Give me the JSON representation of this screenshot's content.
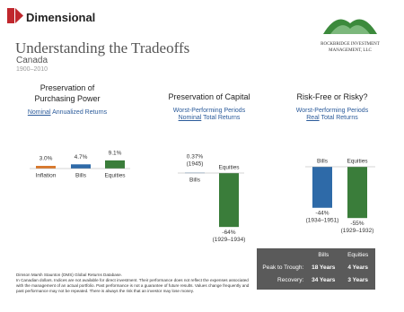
{
  "header": {
    "brand": "Dimensional",
    "title": "Understanding the Tradeoffs",
    "subtitle": "Canada",
    "period": "1900–2010",
    "partner": [
      "ROCKBRIDGE INVESTMENT",
      "MANAGEMENT, LLC"
    ]
  },
  "chart_data": [
    {
      "type": "bar",
      "title": "Preservation of Purchasing Power",
      "measure_underlined": "Nominal",
      "measure_rest": "Annualized Returns",
      "categories": [
        "Inflation",
        "Bills",
        "Equities"
      ],
      "values": [
        3.0,
        4.7,
        9.1
      ],
      "value_labels": [
        "3.0%",
        "4.7%",
        "9.1%"
      ],
      "colors": [
        "#d9782b",
        "#2e6aa8",
        "#3a7d3a"
      ]
    },
    {
      "type": "bar",
      "title": "Preservation of Capital",
      "subtitle": "Worst-Performing Periods",
      "measure_underlined": "Nominal",
      "measure_rest": "Total Returns",
      "categories": [
        "Bills",
        "Equities"
      ],
      "values": [
        0.37,
        -64
      ],
      "value_labels": [
        "0.37%",
        "-64%"
      ],
      "period_labels": [
        "(1945)",
        "(1929–1934)"
      ],
      "colors": [
        "#2e6aa8",
        "#3a7d3a"
      ]
    },
    {
      "type": "bar",
      "title": "Risk-Free or Risky?",
      "subtitle": "Worst-Performing Periods",
      "measure_underlined": "Real",
      "measure_rest": "Total Returns",
      "categories": [
        "Bills",
        "Equities"
      ],
      "values": [
        -44,
        -55
      ],
      "value_labels": [
        "-44%",
        "-55%"
      ],
      "period_labels": [
        "(1934–1951)",
        "(1929–1932)"
      ],
      "colors": [
        "#2e6aa8",
        "#3a7d3a"
      ]
    }
  ],
  "table": {
    "columns": [
      "Bills",
      "Equities"
    ],
    "rows": [
      {
        "label": "Peak to Trough:",
        "values": [
          "18 Years",
          "4 Years"
        ]
      },
      {
        "label": "Recovery:",
        "values": [
          "34 Years",
          "3 Years"
        ]
      }
    ]
  },
  "footnote": [
    "Dimson Marsh Staunton (DMS) Global Returns Database.",
    "In Canadian dollars. Indices are not available for direct investment. Their performance does not reflect the expenses associated with the management of an actual portfolio. Past performance is not a guarantee of future results. Values change frequently and past performance may not be repeated. There is always the risk that an investor may lose money."
  ]
}
